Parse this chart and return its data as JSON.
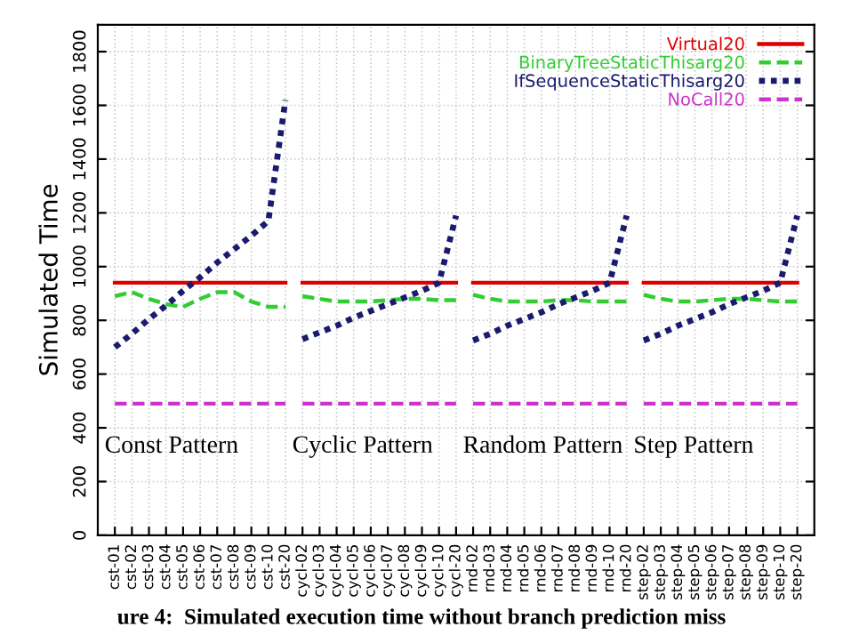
{
  "chart_data": {
    "type": "line",
    "ylabel": "Simulated Time",
    "categories": [
      "cst-01",
      "cst-02",
      "cst-03",
      "cst-04",
      "cst-05",
      "cst-06",
      "cst-07",
      "cst-08",
      "cst-09",
      "cst-10",
      "cst-20",
      "cycl-02",
      "cycl-03",
      "cycl-04",
      "cycl-05",
      "cycl-06",
      "cycl-07",
      "cycl-08",
      "cycl-09",
      "cycl-10",
      "cycl-20",
      "rnd-02",
      "rnd-03",
      "rnd-04",
      "rnd-05",
      "rnd-06",
      "rnd-07",
      "rnd-08",
      "rnd-09",
      "rnd-10",
      "rnd-20",
      "step-02",
      "step-03",
      "step-04",
      "step-05",
      "step-06",
      "step-07",
      "step-08",
      "step-09",
      "step-10",
      "step-20"
    ],
    "ylim": [
      0,
      1900
    ],
    "yticks": [
      0,
      200,
      400,
      600,
      800,
      1000,
      1200,
      1400,
      1600,
      1800
    ],
    "grid": true,
    "legend": "top right",
    "marker": "none",
    "series": [
      {
        "name": "Virtual20",
        "color": "#dd0000",
        "line_style": "solid",
        "values": [
          940,
          940,
          940,
          940,
          940,
          940,
          940,
          940,
          940,
          940,
          940,
          null,
          null,
          null,
          null,
          null,
          null,
          null,
          null,
          null,
          null,
          null,
          null,
          null,
          null,
          null,
          null,
          null,
          null,
          null,
          null,
          null,
          null,
          null,
          null,
          null,
          null,
          null,
          null,
          null,
          null
        ]
      },
      {
        "name": "BinaryTreeStaticThisarg20",
        "color": "#33cc33",
        "line_style": "dashed",
        "values": [
          890,
          905,
          880,
          860,
          850,
          880,
          905,
          905,
          870,
          850,
          850,
          null,
          null,
          null,
          null,
          null,
          null,
          null,
          null,
          null,
          null,
          null,
          null,
          null,
          null,
          null,
          null,
          null,
          null,
          null,
          null,
          null,
          null,
          null,
          null,
          null,
          null,
          null,
          null,
          null,
          null
        ]
      },
      {
        "name": "IfSequenceStaticThisarg20",
        "color": "#1a1a6e",
        "line_style": "dotted",
        "values": [
          700,
          750,
          805,
          855,
          910,
          960,
          1015,
          1065,
          1115,
          1170,
          1620,
          null,
          null,
          null,
          null,
          null,
          null,
          null,
          null,
          null,
          null,
          null,
          null,
          null,
          null,
          null,
          null,
          null,
          null,
          null,
          null,
          null,
          null,
          null,
          null,
          null,
          null,
          null,
          null,
          null,
          null
        ]
      },
      {
        "name": "NoCall20",
        "color": "#cc33cc",
        "line_style": "dashed",
        "values": [
          490,
          490,
          490,
          490,
          490,
          490,
          490,
          490,
          490,
          490,
          490,
          null,
          null,
          null,
          null,
          null,
          null,
          null,
          null,
          null,
          null,
          null,
          null,
          null,
          null,
          null,
          null,
          null,
          null,
          null,
          null,
          null,
          null,
          null,
          null,
          null,
          null,
          null,
          null,
          null,
          null
        ]
      },
      {
        "color": "#dd0000",
        "line_style": "solid",
        "values": [
          null,
          null,
          null,
          null,
          null,
          null,
          null,
          null,
          null,
          null,
          null,
          940,
          940,
          940,
          940,
          940,
          940,
          940,
          940,
          940,
          940,
          null,
          null,
          null,
          null,
          null,
          null,
          null,
          null,
          null,
          null,
          null,
          null,
          null,
          null,
          null,
          null,
          null,
          null,
          null,
          null
        ]
      },
      {
        "color": "#33cc33",
        "line_style": "dashed",
        "values": [
          null,
          null,
          null,
          null,
          null,
          null,
          null,
          null,
          null,
          null,
          null,
          890,
          880,
          870,
          870,
          870,
          875,
          880,
          880,
          875,
          875,
          null,
          null,
          null,
          null,
          null,
          null,
          null,
          null,
          null,
          null,
          null,
          null,
          null,
          null,
          null,
          null,
          null,
          null,
          null,
          null
        ]
      },
      {
        "color": "#1a1a6e",
        "line_style": "dotted",
        "values": [
          null,
          null,
          null,
          null,
          null,
          null,
          null,
          null,
          null,
          null,
          null,
          730,
          755,
          780,
          810,
          835,
          860,
          885,
          910,
          940,
          1190,
          null,
          null,
          null,
          null,
          null,
          null,
          null,
          null,
          null,
          null,
          null,
          null,
          null,
          null,
          null,
          null,
          null,
          null,
          null,
          null
        ]
      },
      {
        "color": "#cc33cc",
        "line_style": "dashed",
        "values": [
          null,
          null,
          null,
          null,
          null,
          null,
          null,
          null,
          null,
          null,
          null,
          490,
          490,
          490,
          490,
          490,
          490,
          490,
          490,
          490,
          490,
          null,
          null,
          null,
          null,
          null,
          null,
          null,
          null,
          null,
          null,
          null,
          null,
          null,
          null,
          null,
          null,
          null,
          null,
          null,
          null
        ]
      },
      {
        "color": "#dd0000",
        "line_style": "solid",
        "values": [
          null,
          null,
          null,
          null,
          null,
          null,
          null,
          null,
          null,
          null,
          null,
          null,
          null,
          null,
          null,
          null,
          null,
          null,
          null,
          null,
          null,
          940,
          940,
          940,
          940,
          940,
          940,
          940,
          940,
          940,
          940,
          null,
          null,
          null,
          null,
          null,
          null,
          null,
          null,
          null,
          null
        ]
      },
      {
        "color": "#33cc33",
        "line_style": "dashed",
        "values": [
          null,
          null,
          null,
          null,
          null,
          null,
          null,
          null,
          null,
          null,
          null,
          null,
          null,
          null,
          null,
          null,
          null,
          null,
          null,
          null,
          null,
          895,
          880,
          870,
          870,
          870,
          875,
          875,
          870,
          870,
          870,
          null,
          null,
          null,
          null,
          null,
          null,
          null,
          null,
          null,
          null
        ]
      },
      {
        "color": "#1a1a6e",
        "line_style": "dotted",
        "values": [
          null,
          null,
          null,
          null,
          null,
          null,
          null,
          null,
          null,
          null,
          null,
          null,
          null,
          null,
          null,
          null,
          null,
          null,
          null,
          null,
          null,
          725,
          750,
          780,
          805,
          830,
          860,
          885,
          910,
          940,
          1190,
          null,
          null,
          null,
          null,
          null,
          null,
          null,
          null,
          null,
          null
        ]
      },
      {
        "color": "#cc33cc",
        "line_style": "dashed",
        "values": [
          null,
          null,
          null,
          null,
          null,
          null,
          null,
          null,
          null,
          null,
          null,
          null,
          null,
          null,
          null,
          null,
          null,
          null,
          null,
          null,
          null,
          490,
          490,
          490,
          490,
          490,
          490,
          490,
          490,
          490,
          490,
          null,
          null,
          null,
          null,
          null,
          null,
          null,
          null,
          null,
          null
        ]
      },
      {
        "color": "#dd0000",
        "line_style": "solid",
        "values": [
          null,
          null,
          null,
          null,
          null,
          null,
          null,
          null,
          null,
          null,
          null,
          null,
          null,
          null,
          null,
          null,
          null,
          null,
          null,
          null,
          null,
          null,
          null,
          null,
          null,
          null,
          null,
          null,
          null,
          null,
          null,
          940,
          940,
          940,
          940,
          940,
          940,
          940,
          940,
          940,
          940
        ]
      },
      {
        "color": "#33cc33",
        "line_style": "dashed",
        "values": [
          null,
          null,
          null,
          null,
          null,
          null,
          null,
          null,
          null,
          null,
          null,
          null,
          null,
          null,
          null,
          null,
          null,
          null,
          null,
          null,
          null,
          null,
          null,
          null,
          null,
          null,
          null,
          null,
          null,
          null,
          null,
          895,
          880,
          870,
          870,
          875,
          880,
          880,
          875,
          870,
          870
        ]
      },
      {
        "color": "#1a1a6e",
        "line_style": "dotted",
        "values": [
          null,
          null,
          null,
          null,
          null,
          null,
          null,
          null,
          null,
          null,
          null,
          null,
          null,
          null,
          null,
          null,
          null,
          null,
          null,
          null,
          null,
          null,
          null,
          null,
          null,
          null,
          null,
          null,
          null,
          null,
          null,
          725,
          750,
          780,
          805,
          830,
          860,
          885,
          910,
          940,
          1190
        ]
      },
      {
        "color": "#cc33cc",
        "line_style": "dashed",
        "values": [
          null,
          null,
          null,
          null,
          null,
          null,
          null,
          null,
          null,
          null,
          null,
          null,
          null,
          null,
          null,
          null,
          null,
          null,
          null,
          null,
          null,
          null,
          null,
          null,
          null,
          null,
          null,
          null,
          null,
          null,
          null,
          490,
          490,
          490,
          490,
          490,
          490,
          490,
          490,
          490,
          490
        ]
      }
    ],
    "annotations": [
      "Const Pattern",
      "Cyclic Pattern",
      "Random Pattern",
      "Step Pattern",
      "ure 4:  Simulated execution time without branch prediction miss"
    ]
  }
}
